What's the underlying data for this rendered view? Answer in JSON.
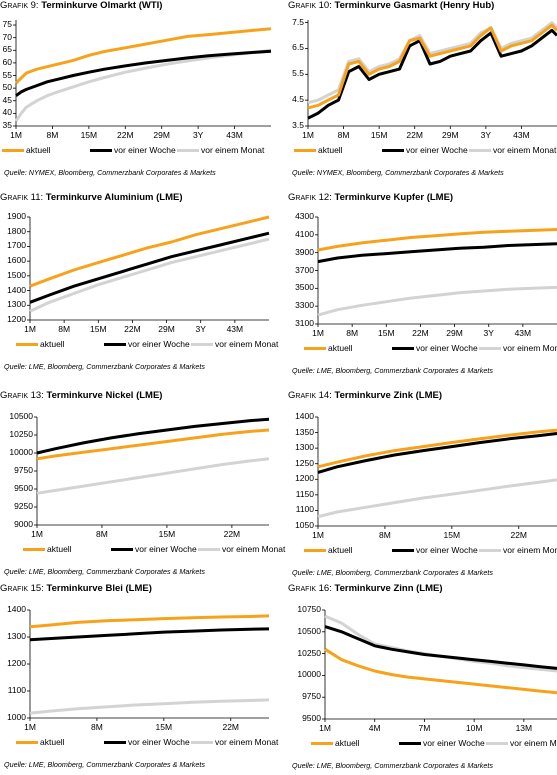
{
  "colors": {
    "aktuell": "#f7a21b",
    "woche": "#000000",
    "monat": "#d3d3d3",
    "axis": "#000000"
  },
  "legend": {
    "aktuell": "aktuell",
    "woche": "vor einer Woche",
    "monat": "vor einem Monat"
  },
  "chart_data": [
    {
      "id": "g9",
      "type": "line",
      "title_prefix": "Grafik 9:",
      "title": "Terminkurve Olmarkt (WTI)",
      "source": "Quelle: NYMEX, Bloomberg, Commerzbank Corporates & Markets",
      "yticks": [
        "35",
        "40",
        "45",
        "50",
        "55",
        "60",
        "65",
        "70",
        "75"
      ],
      "ylim": [
        35,
        77
      ],
      "xticks": [
        "1M",
        "8M",
        "15M",
        "22M",
        "29M",
        "3Y",
        "43M"
      ],
      "xtick_pos": [
        1,
        8,
        15,
        22,
        29,
        36,
        43
      ],
      "xlim": [
        1,
        50
      ],
      "x": [
        1,
        2,
        3,
        5,
        7,
        9,
        12,
        15,
        18,
        22,
        26,
        30,
        34,
        38,
        42,
        46,
        50
      ],
      "series": [
        {
          "key": "aktuell",
          "values": [
            52,
            54,
            56,
            57.5,
            58.5,
            59.5,
            61,
            63,
            64.5,
            66,
            67.5,
            69,
            70.5,
            71.2,
            72,
            72.8,
            73.5
          ]
        },
        {
          "key": "woche",
          "values": [
            47,
            48.5,
            49.5,
            51,
            52.5,
            53.5,
            55,
            56.3,
            57.5,
            58.8,
            60,
            61,
            62,
            62.8,
            63.5,
            64.1,
            64.6
          ]
        },
        {
          "key": "monat",
          "values": [
            37,
            40,
            42.5,
            45,
            47,
            48.5,
            50.5,
            52.5,
            54.2,
            56.3,
            58,
            59.5,
            60.8,
            62,
            63,
            64,
            65
          ]
        }
      ]
    },
    {
      "id": "g10",
      "type": "line",
      "title_prefix": "Grafik 10:",
      "title": "Terminkurve Gasmarkt (Henry Hub)",
      "source": "Quelle: NYMEX, Bloomberg, Commerzbank Corporates & Markets",
      "yticks": [
        "3.5",
        "4.5",
        "5.5",
        "6.5",
        "7.5"
      ],
      "ylim": [
        3.5,
        7.6
      ],
      "xticks": [
        "1M",
        "8M",
        "15M",
        "22M",
        "29M",
        "3Y",
        "43M"
      ],
      "xtick_pos": [
        1,
        8,
        15,
        22,
        29,
        36,
        43
      ],
      "xlim": [
        1,
        50
      ],
      "x": [
        1,
        3,
        5,
        7,
        9,
        11,
        13,
        15,
        17,
        19,
        21,
        23,
        25,
        27,
        29,
        31,
        33,
        35,
        37,
        39,
        41,
        43,
        45,
        47,
        49,
        50
      ],
      "series": [
        {
          "key": "aktuell",
          "values": [
            4.2,
            4.3,
            4.5,
            4.7,
            5.9,
            6.0,
            5.5,
            5.7,
            5.8,
            6.0,
            6.8,
            6.9,
            6.2,
            6.3,
            6.4,
            6.5,
            6.6,
            7.0,
            7.3,
            6.4,
            6.6,
            6.7,
            6.8,
            7.1,
            7.4,
            7.2
          ]
        },
        {
          "key": "woche",
          "values": [
            3.8,
            4.0,
            4.3,
            4.5,
            5.6,
            5.8,
            5.3,
            5.5,
            5.6,
            5.7,
            6.6,
            6.8,
            5.9,
            6.0,
            6.2,
            6.3,
            6.4,
            6.8,
            7.1,
            6.2,
            6.3,
            6.4,
            6.6,
            6.9,
            7.2,
            7.0
          ]
        },
        {
          "key": "monat",
          "values": [
            4.4,
            4.5,
            4.7,
            4.9,
            6.0,
            6.1,
            5.6,
            5.8,
            5.9,
            6.1,
            6.8,
            7.0,
            6.3,
            6.4,
            6.5,
            6.6,
            6.7,
            7.1,
            7.3,
            6.5,
            6.7,
            6.8,
            6.9,
            7.2,
            7.5,
            7.3
          ]
        }
      ]
    },
    {
      "id": "g11",
      "type": "line",
      "title_prefix": "Grafik 11:",
      "title": "Terminkurve Aluminium (LME)",
      "source": "Quelle: LME, Bloomberg, Commerzbank Corporates & Markets",
      "yticks": [
        "1200",
        "1300",
        "1400",
        "1500",
        "1600",
        "1700",
        "1800",
        "1900"
      ],
      "ylim": [
        1200,
        1900
      ],
      "xticks": [
        "1M",
        "8M",
        "15M",
        "22M",
        "29M",
        "3Y",
        "43M"
      ],
      "xtick_pos": [
        1,
        8,
        15,
        22,
        29,
        36,
        43
      ],
      "xlim": [
        1,
        50
      ],
      "x": [
        1,
        5,
        10,
        15,
        20,
        25,
        30,
        35,
        40,
        45,
        50
      ],
      "series": [
        {
          "key": "aktuell",
          "values": [
            1430,
            1480,
            1540,
            1590,
            1640,
            1690,
            1730,
            1780,
            1820,
            1860,
            1900
          ]
        },
        {
          "key": "woche",
          "values": [
            1320,
            1370,
            1430,
            1480,
            1530,
            1580,
            1630,
            1670,
            1710,
            1750,
            1790
          ]
        },
        {
          "key": "monat",
          "values": [
            1260,
            1320,
            1380,
            1440,
            1490,
            1540,
            1590,
            1630,
            1670,
            1710,
            1750
          ]
        }
      ]
    },
    {
      "id": "g12",
      "type": "line",
      "title_prefix": "Grafik 12:",
      "title": "Terminkurve Kupfer (LME)",
      "source": "Quelle: LME, Bloomberg, Commerzbank Corporates & Markets",
      "yticks": [
        "3100",
        "3300",
        "3500",
        "3700",
        "3900",
        "4100",
        "4300"
      ],
      "ylim": [
        3100,
        4300
      ],
      "xticks": [
        "1M",
        "8M",
        "15M",
        "22M",
        "29M",
        "3Y",
        "43M"
      ],
      "xtick_pos": [
        1,
        8,
        15,
        22,
        29,
        36,
        43
      ],
      "xlim": [
        1,
        50
      ],
      "x": [
        1,
        5,
        10,
        15,
        20,
        25,
        30,
        35,
        40,
        45,
        50
      ],
      "series": [
        {
          "key": "aktuell",
          "values": [
            3930,
            3970,
            4010,
            4040,
            4070,
            4090,
            4110,
            4130,
            4140,
            4150,
            4160
          ]
        },
        {
          "key": "woche",
          "values": [
            3800,
            3840,
            3870,
            3890,
            3910,
            3930,
            3950,
            3960,
            3980,
            3990,
            4000
          ]
        },
        {
          "key": "monat",
          "values": [
            3200,
            3260,
            3310,
            3350,
            3390,
            3420,
            3450,
            3470,
            3490,
            3500,
            3510
          ]
        }
      ]
    },
    {
      "id": "g13",
      "type": "line",
      "title_prefix": "Grafik 13:",
      "title": "Terminkurve Nickel (LME)",
      "source": "Quelle: LME, Bloomberg, Commerzbank Corporates & Markets",
      "yticks": [
        "9000",
        "9250",
        "9500",
        "9750",
        "10000",
        "10250",
        "10500"
      ],
      "ylim": [
        9000,
        10500
      ],
      "xticks": [
        "1M",
        "8M",
        "15M",
        "22M"
      ],
      "xtick_pos": [
        1,
        8,
        15,
        22
      ],
      "xlim": [
        1,
        26
      ],
      "x": [
        1,
        3,
        6,
        9,
        12,
        15,
        18,
        21,
        24,
        26
      ],
      "series": [
        {
          "key": "aktuell",
          "values": [
            9920,
            9960,
            10010,
            10060,
            10110,
            10160,
            10210,
            10260,
            10300,
            10320
          ]
        },
        {
          "key": "woche",
          "values": [
            10000,
            10060,
            10140,
            10210,
            10270,
            10320,
            10370,
            10410,
            10450,
            10470
          ]
        },
        {
          "key": "monat",
          "values": [
            9440,
            9480,
            9540,
            9600,
            9660,
            9720,
            9780,
            9840,
            9890,
            9920
          ]
        }
      ]
    },
    {
      "id": "g14",
      "type": "line",
      "title_prefix": "Grafik 14:",
      "title": "Terminkurve Zink (LME)",
      "source": "Quelle: LME, Bloomberg, Commerzbank Corporates & Markets",
      "yticks": [
        "1050",
        "1100",
        "1150",
        "1200",
        "1250",
        "1300",
        "1350",
        "1400"
      ],
      "ylim": [
        1050,
        1400
      ],
      "xticks": [
        "1M",
        "8M",
        "15M",
        "22M"
      ],
      "xtick_pos": [
        1,
        8,
        15,
        22
      ],
      "xlim": [
        1,
        26
      ],
      "x": [
        1,
        3,
        6,
        9,
        12,
        15,
        18,
        21,
        24,
        26
      ],
      "series": [
        {
          "key": "aktuell",
          "values": [
            1240,
            1255,
            1275,
            1292,
            1305,
            1318,
            1330,
            1342,
            1352,
            1358
          ]
        },
        {
          "key": "woche",
          "values": [
            1222,
            1240,
            1260,
            1278,
            1292,
            1305,
            1318,
            1330,
            1340,
            1347
          ]
        },
        {
          "key": "monat",
          "values": [
            1080,
            1095,
            1110,
            1125,
            1140,
            1152,
            1165,
            1178,
            1190,
            1198
          ]
        }
      ]
    },
    {
      "id": "g15",
      "type": "line",
      "title_prefix": "Grafik 15:",
      "title": "Terminkurve Blei (LME)",
      "source": "Quelle: LME, Bloomberg, Commerzbank Corporates & Markets",
      "yticks": [
        "1000",
        "1100",
        "1200",
        "1300",
        "1400"
      ],
      "ylim": [
        1000,
        1400
      ],
      "xticks": [
        "1M",
        "8M",
        "15M",
        "22M"
      ],
      "xtick_pos": [
        1,
        8,
        15,
        22
      ],
      "xlim": [
        1,
        26
      ],
      "x": [
        1,
        3,
        6,
        9,
        12,
        15,
        18,
        21,
        24,
        26
      ],
      "series": [
        {
          "key": "aktuell",
          "values": [
            1338,
            1344,
            1354,
            1360,
            1364,
            1368,
            1371,
            1374,
            1376,
            1378
          ]
        },
        {
          "key": "woche",
          "values": [
            1290,
            1294,
            1300,
            1306,
            1312,
            1318,
            1322,
            1326,
            1329,
            1330
          ]
        },
        {
          "key": "monat",
          "values": [
            1018,
            1025,
            1034,
            1041,
            1048,
            1053,
            1058,
            1062,
            1065,
            1067
          ]
        }
      ]
    },
    {
      "id": "g16",
      "type": "line",
      "title_prefix": "Grafik 16:",
      "title": "Terminkurve Zinn (LME)",
      "source": "Quelle: LME, Bloomberg, Commerzbank Corporates & Markets",
      "yticks": [
        "9500",
        "9750",
        "10000",
        "10250",
        "10500",
        "10750"
      ],
      "ylim": [
        9500,
        10750
      ],
      "xticks": [
        "1M",
        "4M",
        "7M",
        "10M",
        "13M"
      ],
      "xtick_pos": [
        1,
        4,
        7,
        10,
        13
      ],
      "xlim": [
        1,
        15
      ],
      "x": [
        1,
        2,
        3,
        4,
        5,
        6,
        7,
        8,
        9,
        10,
        11,
        12,
        13,
        14,
        15
      ],
      "series": [
        {
          "key": "aktuell",
          "values": [
            10300,
            10180,
            10110,
            10050,
            10010,
            9980,
            9960,
            9940,
            9920,
            9900,
            9880,
            9860,
            9840,
            9820,
            9800
          ]
        },
        {
          "key": "woche",
          "values": [
            10560,
            10500,
            10420,
            10340,
            10300,
            10270,
            10240,
            10220,
            10200,
            10180,
            10160,
            10140,
            10120,
            10100,
            10080
          ]
        },
        {
          "key": "monat",
          "values": [
            10680,
            10600,
            10470,
            10360,
            10320,
            10280,
            10250,
            10220,
            10190,
            10160,
            10140,
            10110,
            10090,
            10070,
            10050
          ]
        }
      ]
    }
  ]
}
